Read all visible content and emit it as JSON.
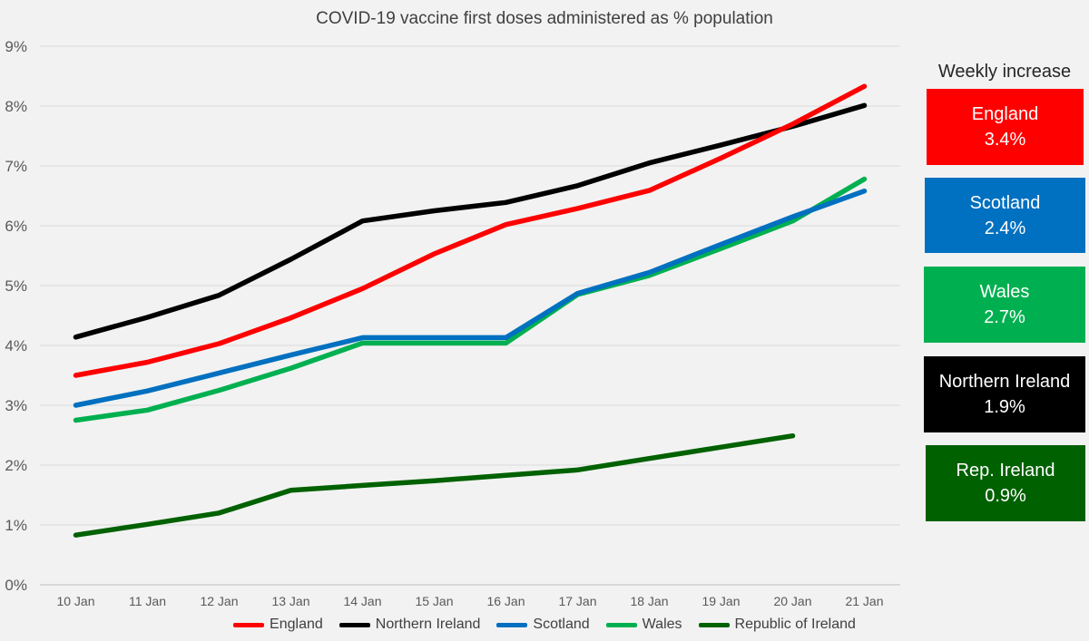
{
  "colors": {
    "England": "#ff0000",
    "Northern Ireland": "#000000",
    "Scotland": "#0070c0",
    "Wales": "#00b050",
    "Republic of Ireland": "#006100"
  },
  "chart_data": {
    "type": "line",
    "title": "COVID-19 vaccine first doses administered as % population",
    "xlabel": "",
    "ylabel": "",
    "categories": [
      "10 Jan",
      "11 Jan",
      "12 Jan",
      "13 Jan",
      "14 Jan",
      "15 Jan",
      "16 Jan",
      "17 Jan",
      "18 Jan",
      "19 Jan",
      "20 Jan",
      "21 Jan"
    ],
    "ylim": [
      0,
      9
    ],
    "y_ticks": [
      "0%",
      "1%",
      "2%",
      "3%",
      "4%",
      "5%",
      "6%",
      "7%",
      "8%",
      "9%"
    ],
    "grid": true,
    "legend_position": "bottom",
    "series": [
      {
        "name": "England",
        "values": [
          3.5,
          3.72,
          4.03,
          4.46,
          4.95,
          5.53,
          6.02,
          6.29,
          6.59,
          7.13,
          7.7,
          8.33
        ]
      },
      {
        "name": "Northern Ireland",
        "values": [
          4.14,
          4.47,
          4.84,
          5.44,
          6.08,
          6.25,
          6.39,
          6.67,
          7.05,
          7.35,
          7.66,
          8.01
        ]
      },
      {
        "name": "Scotland",
        "values": [
          3.0,
          3.24,
          3.54,
          3.84,
          4.13,
          4.13,
          4.13,
          4.87,
          5.22,
          5.69,
          6.15,
          6.58
        ]
      },
      {
        "name": "Wales",
        "values": [
          2.75,
          2.92,
          3.25,
          3.62,
          4.04,
          4.04,
          4.04,
          4.85,
          5.17,
          5.62,
          6.08,
          6.78
        ]
      },
      {
        "name": "Republic of Ireland",
        "values": [
          0.83,
          1.01,
          1.2,
          1.58,
          1.66,
          1.74,
          1.83,
          1.92,
          2.11,
          2.3,
          2.49,
          null
        ]
      }
    ]
  },
  "sidebar": {
    "heading": "Weekly increase",
    "boxes": [
      {
        "name": "England",
        "value": "3.4%",
        "color": "#ff0000"
      },
      {
        "name": "Scotland",
        "value": "2.4%",
        "color": "#0070c0"
      },
      {
        "name": "Wales",
        "value": "2.7%",
        "color": "#00b050"
      },
      {
        "name": "Northern Ireland",
        "value": "1.9%",
        "color": "#000000"
      },
      {
        "name": "Rep. Ireland",
        "value": "0.9%",
        "color": "#006100"
      }
    ]
  }
}
